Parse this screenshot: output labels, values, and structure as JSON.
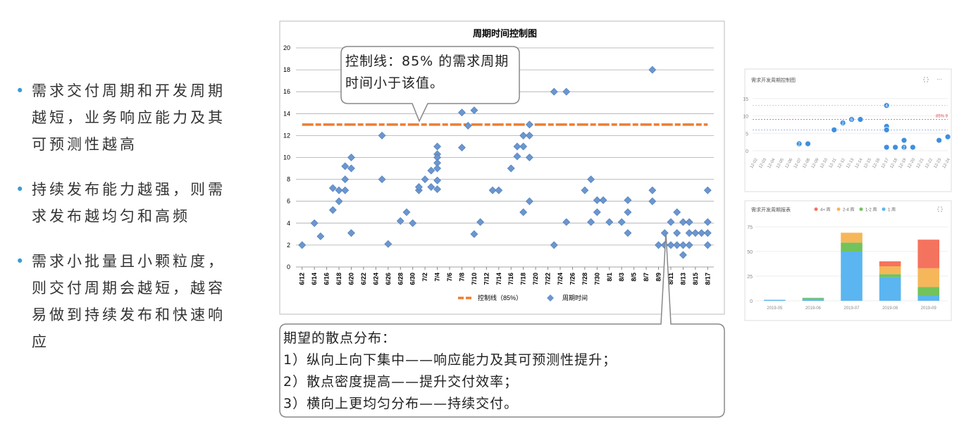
{
  "bullets": [
    "需求交付周期和开发周期越短，业务响应能力及其可预测性越高",
    "持续发布能力越强，则需求发布越均匀和高频",
    "需求小批量且小颗粒度，则交付周期会越短，越容易做到持续发布和快速响应"
  ],
  "callouts": [
    {
      "text": "控制线：85% 的需求周期时间小于该值。"
    },
    {
      "title": "期望的散点分布：",
      "lines": [
        "1）纵向上向下集中——响应能力及其可预测性提升；",
        "2）散点密度提高——提升交付效率；",
        "3）横向上更均匀分布——持续交付。"
      ]
    }
  ],
  "chart_data": [
    {
      "type": "scatter",
      "title": "周期时间控制图",
      "xlim": [
        -1,
        67
      ],
      "xticks": [
        {
          "value": 0,
          "label": "6/12"
        },
        {
          "value": 2,
          "label": "6/14"
        },
        {
          "value": 4,
          "label": "6/16"
        },
        {
          "value": 6,
          "label": "6/18"
        },
        {
          "value": 8,
          "label": "6/20"
        },
        {
          "value": 10,
          "label": "6/22"
        },
        {
          "value": 12,
          "label": "6/24"
        },
        {
          "value": 14,
          "label": "6/26"
        },
        {
          "value": 16,
          "label": "6/28"
        },
        {
          "value": 18,
          "label": "6/30"
        },
        {
          "value": 20,
          "label": "7/2"
        },
        {
          "value": 22,
          "label": "7/4"
        },
        {
          "value": 24,
          "label": "7/6"
        },
        {
          "value": 26,
          "label": "7/8"
        },
        {
          "value": 28,
          "label": "7/10"
        },
        {
          "value": 30,
          "label": "7/12"
        },
        {
          "value": 32,
          "label": "7/14"
        },
        {
          "value": 34,
          "label": "7/16"
        },
        {
          "value": 36,
          "label": "7/18"
        },
        {
          "value": 38,
          "label": "7/20"
        },
        {
          "value": 40,
          "label": "7/22"
        },
        {
          "value": 42,
          "label": "7/24"
        },
        {
          "value": 44,
          "label": "7/26"
        },
        {
          "value": 46,
          "label": "7/28"
        },
        {
          "value": 48,
          "label": "7/30"
        },
        {
          "value": 50,
          "label": "8/1"
        },
        {
          "value": 52,
          "label": "8/3"
        },
        {
          "value": 54,
          "label": "8/5"
        },
        {
          "value": 56,
          "label": "8/7"
        },
        {
          "value": 58,
          "label": "8/9"
        },
        {
          "value": 60,
          "label": "8/11"
        },
        {
          "value": 62,
          "label": "8/13"
        },
        {
          "value": 64,
          "label": "8/15"
        },
        {
          "value": 66,
          "label": "8/17"
        }
      ],
      "ylim": [
        0,
        20
      ],
      "yticks": [
        0,
        2,
        4,
        6,
        8,
        10,
        12,
        14,
        16,
        18,
        20
      ],
      "grid": true,
      "legend": "bottom",
      "series": [
        {
          "name": "控制线（85%）",
          "mark": "line",
          "color": "#ed7d31",
          "x": [
            0,
            66
          ],
          "values": [
            13,
            13
          ]
        },
        {
          "name": "周期时间",
          "mark": "diamond",
          "color": "#6b96cf",
          "x": [
            0,
            2,
            3,
            5,
            5,
            6,
            6,
            7,
            7,
            7,
            8,
            8,
            8,
            13,
            13,
            14,
            16,
            17,
            18,
            19,
            19,
            20,
            21,
            21,
            22,
            22,
            22,
            22,
            22,
            22,
            22,
            26,
            26,
            27,
            28,
            28,
            29,
            31,
            32,
            34,
            35,
            35,
            36,
            36,
            36,
            37,
            37,
            37,
            37,
            41,
            41,
            43,
            43,
            46,
            47,
            47,
            48,
            48,
            49,
            50,
            52,
            53,
            53,
            53,
            57,
            57,
            57,
            58,
            59,
            59,
            60,
            60,
            61,
            61,
            61,
            62,
            62,
            62,
            63,
            63,
            63,
            64,
            65,
            66,
            66,
            66,
            66
          ],
          "values": [
            2,
            4,
            2.8,
            5.2,
            7.2,
            7,
            6,
            7,
            8,
            9.2,
            10,
            9,
            3.1,
            12,
            8,
            2.1,
            4.2,
            5,
            4,
            7,
            7.3,
            8,
            8.8,
            7.3,
            11,
            10.3,
            10,
            9.5,
            9,
            7.9,
            7.1,
            14.1,
            10.9,
            12.9,
            14.3,
            3,
            4.1,
            7,
            7,
            9,
            11,
            10.1,
            11,
            12,
            5,
            13,
            12,
            10,
            6,
            16,
            2,
            16,
            4.1,
            7,
            8,
            4.1,
            6.1,
            5,
            6.1,
            4.1,
            4.1,
            6.1,
            5,
            3.1,
            18,
            7,
            6,
            2,
            3.1,
            2,
            4.1,
            2,
            5,
            3.1,
            2,
            4.1,
            2,
            1.1,
            4.1,
            3.1,
            2,
            3.1,
            3.1,
            7,
            4.1,
            3.1,
            2
          ]
        }
      ]
    },
    {
      "type": "dot",
      "title": "需求开发周期控制图",
      "categories": [
        "12-02",
        "12-03",
        "12-04",
        "12-05",
        "12-06",
        "12-07",
        "12-08",
        "12-09",
        "12-10",
        "12-11",
        "12-12",
        "12-13",
        "12-14",
        "12-15",
        "12-16",
        "12-17",
        "12-18",
        "12-19",
        "12-20",
        "12-21",
        "12-22",
        "12-23",
        "12-24"
      ],
      "ylim": [
        0,
        17
      ],
      "yticks": [
        0,
        5,
        10,
        15
      ],
      "color": "#3d8fe0",
      "reference_lines": [
        {
          "value": 13,
          "color": "#f0b070"
        },
        {
          "value": 9,
          "color": "#e05050",
          "label": "85% 9"
        },
        {
          "value": 6,
          "color": "#7f9de8"
        }
      ],
      "x": [
        "12-07",
        "12-08",
        "12-11",
        "12-12",
        "12-13",
        "12-14",
        "12-17",
        "12-17",
        "12-17",
        "12-17",
        "12-18",
        "12-19",
        "12-19",
        "12-20",
        "12-23",
        "12-24"
      ],
      "values": [
        2,
        2,
        6,
        8,
        9,
        9,
        13,
        7,
        6,
        1,
        1,
        3,
        1,
        1,
        3,
        4
      ],
      "counts": [
        "2",
        null,
        null,
        "2",
        "6",
        null,
        "4",
        null,
        null,
        null,
        null,
        null,
        "2",
        null,
        null,
        null
      ]
    },
    {
      "type": "stacked-bar",
      "title": "需求开发周期报表",
      "categories": [
        "2019-05",
        "2019-06",
        "2019-07",
        "2019-08",
        "2019-09"
      ],
      "ylim": [
        0,
        80
      ],
      "yticks": [
        0,
        25,
        50,
        75
      ],
      "legend": "top",
      "series": [
        {
          "name": "4+ 周",
          "color": "#f4735f",
          "values": [
            0,
            0,
            0,
            5,
            29
          ]
        },
        {
          "name": "2-4 周",
          "color": "#f5b75a",
          "values": [
            0,
            0,
            10,
            8,
            19
          ]
        },
        {
          "name": "1-2 周",
          "color": "#72c35b",
          "values": [
            0,
            1,
            9,
            3,
            9
          ]
        },
        {
          "name": "1 周",
          "color": "#5bb5f0",
          "values": [
            1,
            2,
            50,
            24,
            5
          ]
        }
      ]
    }
  ]
}
